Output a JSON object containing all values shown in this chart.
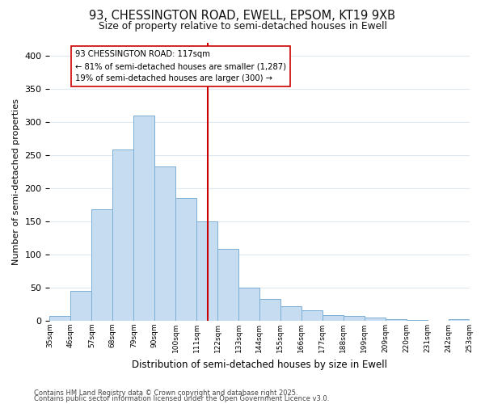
{
  "title": "93, CHESSINGTON ROAD, EWELL, EPSOM, KT19 9XB",
  "subtitle": "Size of property relative to semi-detached houses in Ewell",
  "xlabel": "Distribution of semi-detached houses by size in Ewell",
  "ylabel": "Number of semi-detached properties",
  "bin_labels": [
    "35sqm",
    "46sqm",
    "57sqm",
    "68sqm",
    "79sqm",
    "90sqm",
    "100sqm",
    "111sqm",
    "122sqm",
    "133sqm",
    "144sqm",
    "155sqm",
    "166sqm",
    "177sqm",
    "188sqm",
    "199sqm",
    "209sqm",
    "220sqm",
    "231sqm",
    "242sqm",
    "253sqm"
  ],
  "bar_values": [
    7,
    45,
    168,
    258,
    310,
    233,
    185,
    150,
    108,
    50,
    33,
    22,
    16,
    9,
    7,
    5,
    2,
    1,
    0,
    2
  ],
  "bar_color": "#c6dcf0",
  "bar_edge_color": "#7bafd4",
  "vline_color": "#cc0000",
  "annotation_title": "93 CHESSINGTON ROAD: 117sqm",
  "annotation_line1": "← 81% of semi-detached houses are smaller (1,287)",
  "annotation_line2": "19% of semi-detached houses are larger (300) →",
  "annotation_box_color": "#ffffff",
  "annotation_box_edge": "#cc0000",
  "ylim": [
    0,
    420
  ],
  "yticks": [
    0,
    50,
    100,
    150,
    200,
    250,
    300,
    350,
    400
  ],
  "footer1": "Contains HM Land Registry data © Crown copyright and database right 2025.",
  "footer2": "Contains public sector information licensed under the Open Government Licence v3.0.",
  "background_color": "#ffffff",
  "grid_color": "#dde8f0"
}
